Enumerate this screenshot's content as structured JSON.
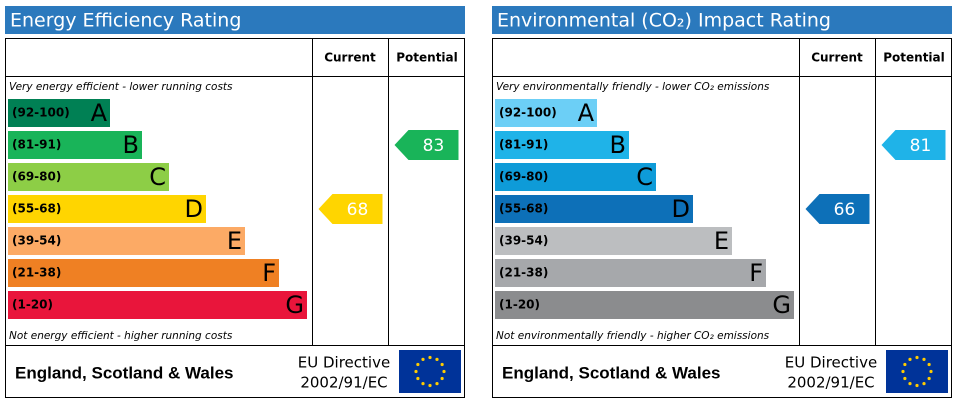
{
  "chart_data": [
    {
      "type": "rating",
      "title": "Energy Efficiency Rating",
      "columns": [
        "Current",
        "Potential"
      ],
      "top_note": "Very energy efficient - lower running costs",
      "bottom_note": "Not energy efficient - higher running costs",
      "bands": [
        {
          "range": "(92-100)",
          "letter": "A",
          "color": "#008054"
        },
        {
          "range": "(81-91)",
          "letter": "B",
          "color": "#19b459"
        },
        {
          "range": "(69-80)",
          "letter": "C",
          "color": "#8dce46"
        },
        {
          "range": "(55-68)",
          "letter": "D",
          "color": "#ffd500"
        },
        {
          "range": "(39-54)",
          "letter": "E",
          "color": "#fcaa65"
        },
        {
          "range": "(21-38)",
          "letter": "F",
          "color": "#ef8023"
        },
        {
          "range": "(1-20)",
          "letter": "G",
          "color": "#e9153b"
        }
      ],
      "current": 68,
      "potential": 83,
      "footer": "England, Scotland & Wales",
      "directive": [
        "EU Directive",
        "2002/91/EC"
      ]
    },
    {
      "type": "rating",
      "title": "Environmental (CO₂) Impact Rating",
      "columns": [
        "Current",
        "Potential"
      ],
      "top_note": "Very environmentally friendly - lower CO₂ emissions",
      "bottom_note": "Not environmentally friendly - higher CO₂ emissions",
      "bands": [
        {
          "range": "(92-100)",
          "letter": "A",
          "color": "#6ccff6"
        },
        {
          "range": "(81-91)",
          "letter": "B",
          "color": "#1fb3e8"
        },
        {
          "range": "(69-80)",
          "letter": "C",
          "color": "#0e9bd8"
        },
        {
          "range": "(55-68)",
          "letter": "D",
          "color": "#0d70b8"
        },
        {
          "range": "(39-54)",
          "letter": "E",
          "color": "#bcbec0"
        },
        {
          "range": "(21-38)",
          "letter": "F",
          "color": "#a6a8ab"
        },
        {
          "range": "(1-20)",
          "letter": "G",
          "color": "#8b8c8e"
        }
      ],
      "current": 66,
      "potential": 81,
      "footer": "England, Scotland & Wales",
      "directive": [
        "EU Directive",
        "2002/91/EC"
      ]
    }
  ]
}
